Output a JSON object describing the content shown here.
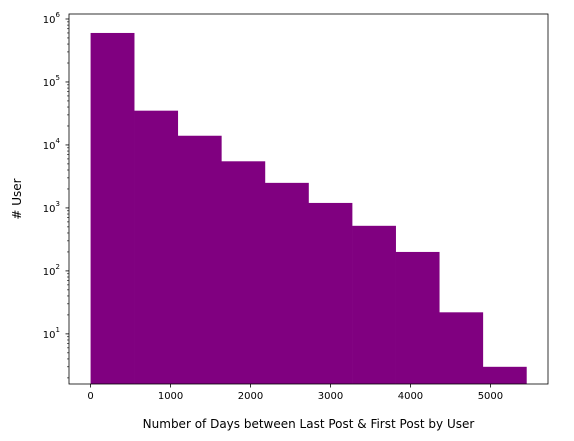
{
  "chart_data": {
    "type": "bar",
    "title": "",
    "xlabel": "Number of Days between Last Post & First Post by User",
    "ylabel": "# User",
    "yscale": "log",
    "grid": false,
    "legend": "none",
    "bar_color": "#800080",
    "bin_edges": [
      0,
      545,
      1090,
      1635,
      2180,
      2725,
      3270,
      3815,
      4360,
      4905,
      5450
    ],
    "counts": [
      600000,
      35000,
      14000,
      5500,
      2500,
      1200,
      520,
      200,
      22,
      3
    ],
    "xlim": [
      -270,
      5720
    ],
    "ylim": [
      1.6,
      1200000
    ],
    "xticks": [
      {
        "value": 0,
        "label": "0"
      },
      {
        "value": 1000,
        "label": "1000"
      },
      {
        "value": 2000,
        "label": "2000"
      },
      {
        "value": 3000,
        "label": "3000"
      },
      {
        "value": 4000,
        "label": "4000"
      },
      {
        "value": 5000,
        "label": "5000"
      }
    ],
    "yticks": [
      {
        "value": 10,
        "base": "10",
        "exp": "1"
      },
      {
        "value": 100,
        "base": "10",
        "exp": "2"
      },
      {
        "value": 1000,
        "base": "10",
        "exp": "3"
      },
      {
        "value": 10000,
        "base": "10",
        "exp": "4"
      },
      {
        "value": 100000,
        "base": "10",
        "exp": "5"
      },
      {
        "value": 1000000,
        "base": "10",
        "exp": "6"
      }
    ]
  }
}
